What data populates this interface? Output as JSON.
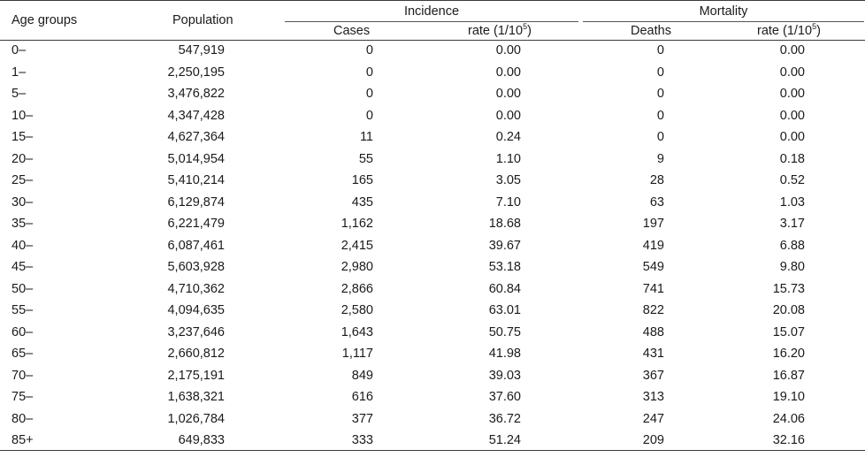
{
  "table": {
    "headers": {
      "age_groups": "Age groups",
      "population": "Population",
      "incidence_group": "Incidence",
      "mortality_group": "Mortality",
      "cases": "Cases",
      "incidence_rate": "rate (1/10",
      "incidence_rate_sup": "5",
      "incidence_rate_close": ")",
      "deaths": "Deaths",
      "mortality_rate": "rate (1/10",
      "mortality_rate_sup": "5",
      "mortality_rate_close": ")"
    },
    "rows": [
      {
        "age": "0–",
        "population": "547,919",
        "cases": "0",
        "incidence_rate": "0.00",
        "deaths": "0",
        "mortality_rate": "0.00"
      },
      {
        "age": "1–",
        "population": "2,250,195",
        "cases": "0",
        "incidence_rate": "0.00",
        "deaths": "0",
        "mortality_rate": "0.00"
      },
      {
        "age": "5–",
        "population": "3,476,822",
        "cases": "0",
        "incidence_rate": "0.00",
        "deaths": "0",
        "mortality_rate": "0.00"
      },
      {
        "age": "10–",
        "population": "4,347,428",
        "cases": "0",
        "incidence_rate": "0.00",
        "deaths": "0",
        "mortality_rate": "0.00"
      },
      {
        "age": "15–",
        "population": "4,627,364",
        "cases": "11",
        "incidence_rate": "0.24",
        "deaths": "0",
        "mortality_rate": "0.00"
      },
      {
        "age": "20–",
        "population": "5,014,954",
        "cases": "55",
        "incidence_rate": "1.10",
        "deaths": "9",
        "mortality_rate": "0.18"
      },
      {
        "age": "25–",
        "population": "5,410,214",
        "cases": "165",
        "incidence_rate": "3.05",
        "deaths": "28",
        "mortality_rate": "0.52"
      },
      {
        "age": "30–",
        "population": "6,129,874",
        "cases": "435",
        "incidence_rate": "7.10",
        "deaths": "63",
        "mortality_rate": "1.03"
      },
      {
        "age": "35–",
        "population": "6,221,479",
        "cases": "1,162",
        "incidence_rate": "18.68",
        "deaths": "197",
        "mortality_rate": "3.17"
      },
      {
        "age": "40–",
        "population": "6,087,461",
        "cases": "2,415",
        "incidence_rate": "39.67",
        "deaths": "419",
        "mortality_rate": "6.88"
      },
      {
        "age": "45–",
        "population": "5,603,928",
        "cases": "2,980",
        "incidence_rate": "53.18",
        "deaths": "549",
        "mortality_rate": "9.80"
      },
      {
        "age": "50–",
        "population": "4,710,362",
        "cases": "2,866",
        "incidence_rate": "60.84",
        "deaths": "741",
        "mortality_rate": "15.73"
      },
      {
        "age": "55–",
        "population": "4,094,635",
        "cases": "2,580",
        "incidence_rate": "63.01",
        "deaths": "822",
        "mortality_rate": "20.08"
      },
      {
        "age": "60–",
        "population": "3,237,646",
        "cases": "1,643",
        "incidence_rate": "50.75",
        "deaths": "488",
        "mortality_rate": "15.07"
      },
      {
        "age": "65–",
        "population": "2,660,812",
        "cases": "1,117",
        "incidence_rate": "41.98",
        "deaths": "431",
        "mortality_rate": "16.20"
      },
      {
        "age": "70–",
        "population": "2,175,191",
        "cases": "849",
        "incidence_rate": "39.03",
        "deaths": "367",
        "mortality_rate": "16.87"
      },
      {
        "age": "75–",
        "population": "1,638,321",
        "cases": "616",
        "incidence_rate": "37.60",
        "deaths": "313",
        "mortality_rate": "19.10"
      },
      {
        "age": "80–",
        "population": "1,026,784",
        "cases": "377",
        "incidence_rate": "36.72",
        "deaths": "247",
        "mortality_rate": "24.06"
      },
      {
        "age": "85+",
        "population": "649,833",
        "cases": "333",
        "incidence_rate": "51.24",
        "deaths": "209",
        "mortality_rate": "32.16"
      }
    ]
  }
}
